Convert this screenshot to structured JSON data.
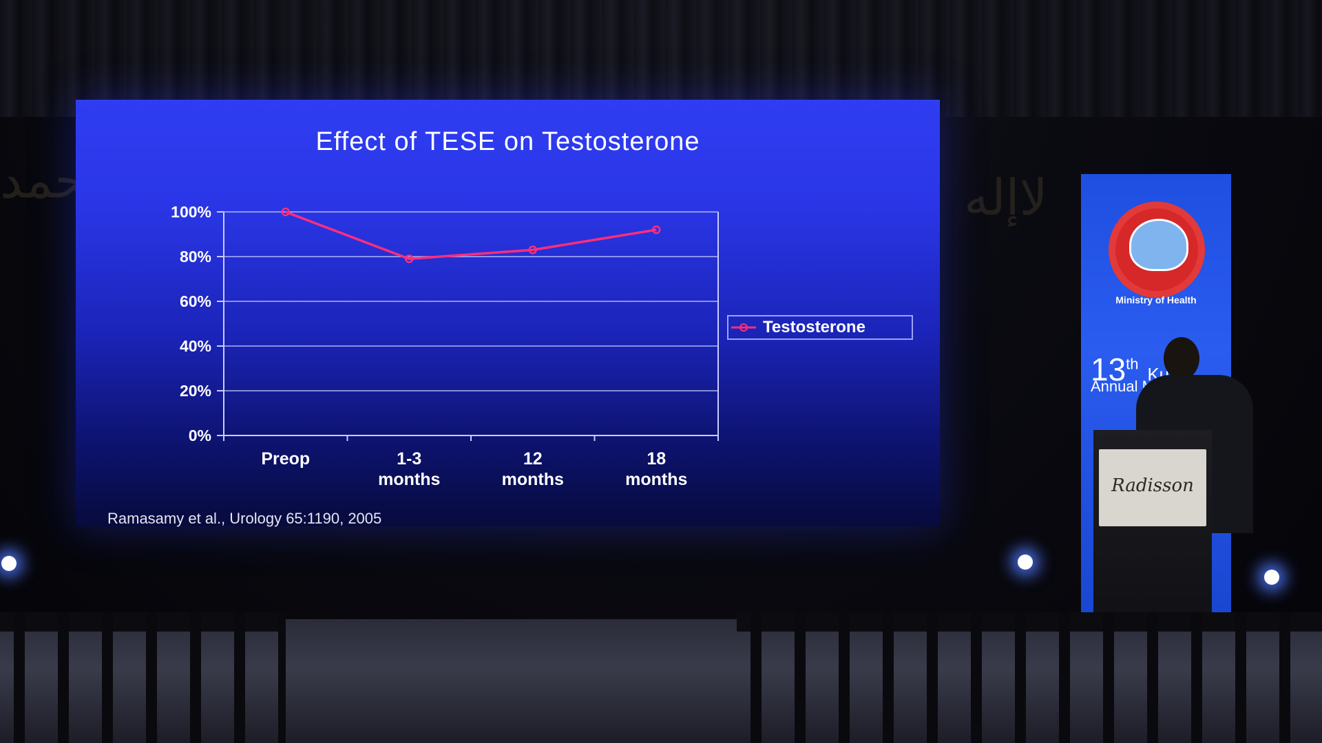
{
  "slide": {
    "title": "Effect of TESE on Testosterone",
    "citation": "Ramasamy et al., Urology 65:1190, 2005"
  },
  "chart_data": {
    "type": "line",
    "title": "Effect of TESE on Testosterone",
    "categories": [
      [
        "Preop"
      ],
      [
        "1-3",
        "months"
      ],
      [
        "12",
        "months"
      ],
      [
        "18",
        "months"
      ]
    ],
    "series": [
      {
        "name": "Testosterone",
        "values": [
          100,
          79,
          83,
          92
        ],
        "color": "#ff2e7a"
      }
    ],
    "yticks": [
      "0%",
      "20%",
      "40%",
      "60%",
      "80%",
      "100%"
    ],
    "ylim": [
      0,
      100
    ],
    "grid": true,
    "legend": "right"
  },
  "banner": {
    "ministry": "Ministry of Health",
    "number": "13",
    "sup": "th",
    "number_suffix": "Ku",
    "annual": "Annual M",
    "logo_icon": "ministry-of-health-emblem"
  },
  "podium": {
    "brand": "Radisson"
  },
  "colors": {
    "slide_bg_top": "#2f3df2",
    "slide_bg_bottom": "#070b3c",
    "line": "#ff2e7a",
    "axis": "#c8ceff"
  }
}
